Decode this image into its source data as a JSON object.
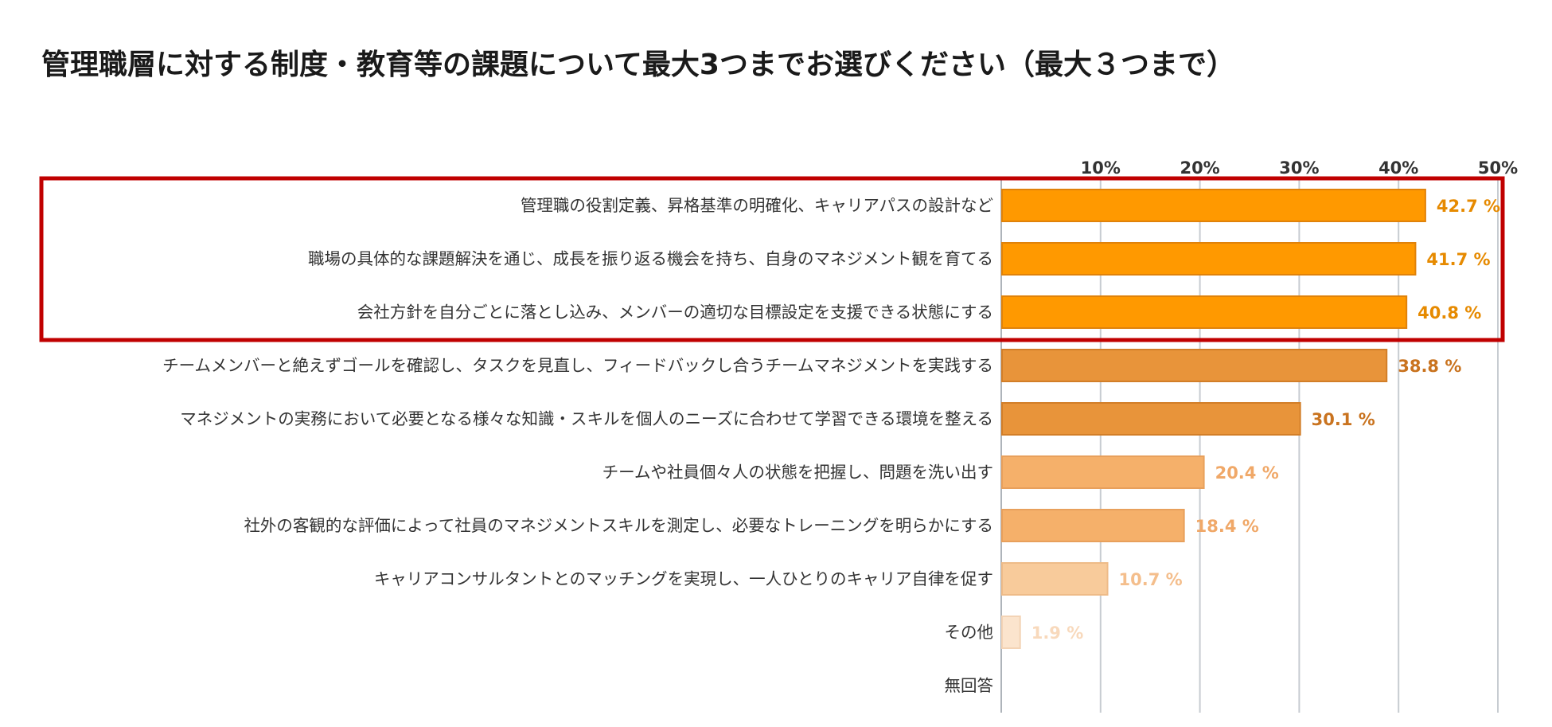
{
  "chart_data": {
    "type": "bar",
    "orientation": "horizontal",
    "title": "管理職層に対する制度・教育等の課題について最大3つまでお選びください（最大３つまで）",
    "categories": [
      "管理職の役割定義、昇格基準の明確化、キャリアパスの設計など",
      "職場の具体的な課題解決を通じ、成長を振り返る機会を持ち、自身のマネジメント観を育てる",
      "会社方針を自分ごとに落とし込み、メンバーの適切な目標設定を支援できる状態にする",
      "チームメンバーと絶えずゴールを確認し、タスクを見直し、フィードバックし合うチームマネジメントを実践する",
      "マネジメントの実務において必要となる様々な知識・スキルを個人のニーズに合わせて学習できる環境を整える",
      "チームや社員個々人の状態を把握し、問題を洗い出す",
      "社外の客観的な評価によって社員のマネジメントスキルを測定し、必要なトレーニングを明らかにする",
      "キャリアコンサルタントとのマッチングを実現し、一人ひとりのキャリア自律を促す",
      "その他",
      "無回答"
    ],
    "values": [
      42.7,
      41.7,
      40.8,
      38.8,
      30.1,
      20.4,
      18.4,
      10.7,
      1.9,
      null
    ],
    "value_labels": [
      "42.7 %",
      "41.7 %",
      "40.8 %",
      "38.8 %",
      "30.1 %",
      "20.4 %",
      "18.4 %",
      "10.7 %",
      "1.9 %",
      ""
    ],
    "bar_colors": [
      "#FF9900",
      "#FF9900",
      "#FF9900",
      "#E8943A",
      "#E8943A",
      "#F5B06A",
      "#F5B06A",
      "#F8CB9B",
      "#FBE4CD",
      "#FFFFFF"
    ],
    "bar_border_colors": [
      "#E0820A",
      "#E0820A",
      "#E0820A",
      "#D27E28",
      "#D27E28",
      "#E8A05C",
      "#E8A05C",
      "#EEBB88",
      "#F3D3B5",
      "#FFFFFF"
    ],
    "label_colors": [
      "#E68A00",
      "#E68A00",
      "#E68A00",
      "#C9731F",
      "#C9731F",
      "#F0A868",
      "#F0A868",
      "#F4BE8C",
      "#F8D9BC",
      "#FFFFFF"
    ],
    "x_ticks": [
      10,
      20,
      30,
      40,
      50
    ],
    "x_tick_labels": [
      "10%",
      "20%",
      "30%",
      "40%",
      "50%"
    ],
    "xlim": [
      0,
      50
    ],
    "grid": true,
    "highlight_box_color": "#C00000",
    "highlighted_categories": [
      0,
      1,
      2
    ]
  }
}
